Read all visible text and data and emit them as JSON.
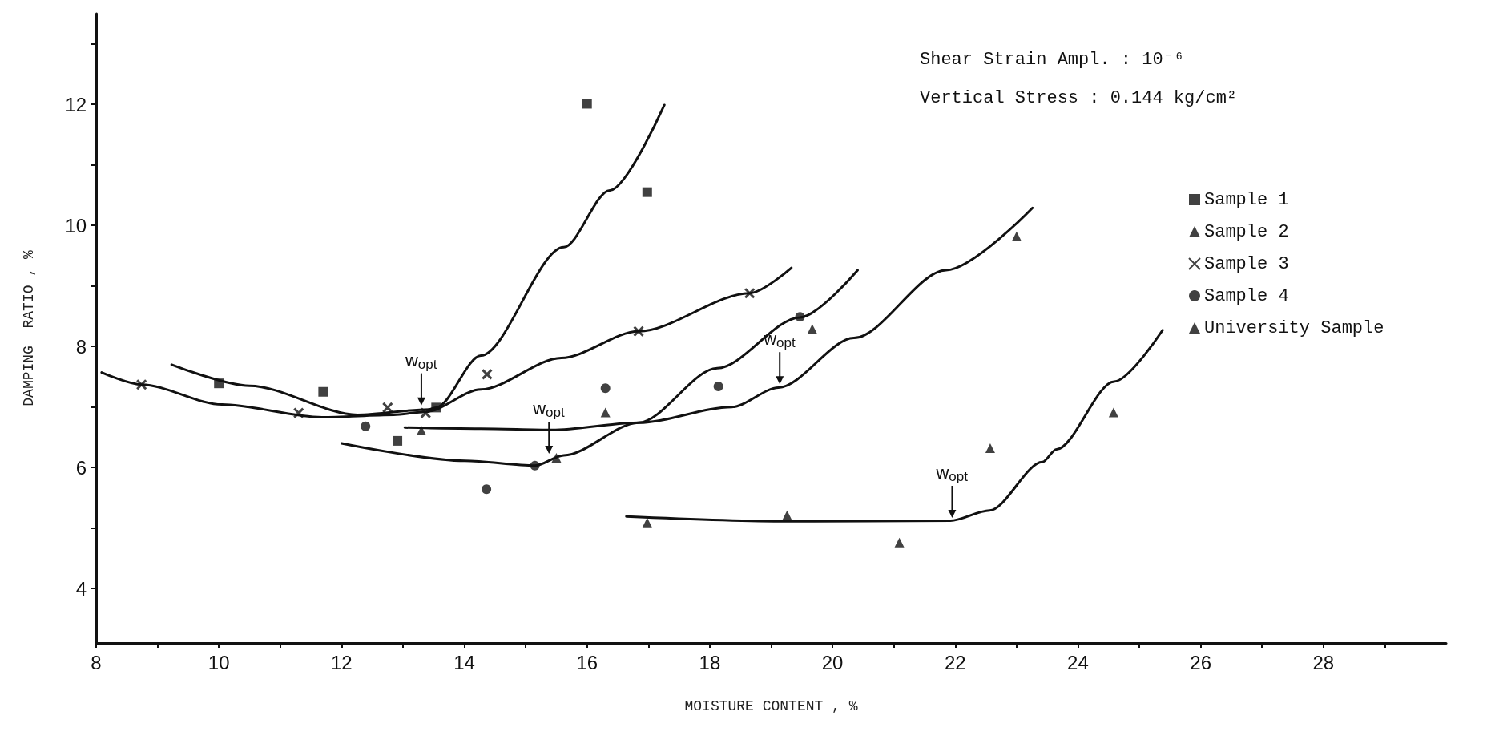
{
  "chart_data": {
    "type": "scatter",
    "xlabel": "MOISTURE CONTENT , %",
    "ylabel": "DAMPING  RATIO , %",
    "xlim": [
      8,
      30
    ],
    "ylim": [
      3.1,
      13.5
    ],
    "xticks": [
      8,
      {
        "value": 9,
        "label": null
      },
      10,
      {
        "value": 11,
        "label": null
      },
      12,
      {
        "value": 13,
        "label": null
      },
      14,
      {
        "value": 15,
        "label": null
      },
      16,
      {
        "value": 17,
        "label": null
      },
      18,
      {
        "value": 19,
        "label": null
      },
      20,
      {
        "value": 21,
        "label": null
      },
      22,
      {
        "value": 23,
        "label": null
      },
      24,
      {
        "value": 25,
        "label": null
      },
      26,
      {
        "value": 27,
        "label": null
      },
      28,
      {
        "value": 29,
        "label": null
      }
    ],
    "yticks": [
      4,
      {
        "value": 5,
        "label": null
      },
      6,
      {
        "value": 7,
        "label": null
      },
      8,
      {
        "value": 9,
        "label": null
      },
      10,
      {
        "value": 11,
        "label": null
      },
      12,
      {
        "value": 13,
        "label": null
      }
    ],
    "grid": false,
    "legend": "top right",
    "series": [
      {
        "name": "Sample 1",
        "color": "#111111",
        "marker": "square",
        "x": [
          10.0,
          11.7,
          12.91,
          13.54,
          16.0,
          16.98
        ],
        "values": [
          7.39,
          7.25,
          6.44,
          6.99,
          12.01,
          10.55
        ]
      },
      {
        "name": "Sample 2",
        "color": "#111111",
        "marker": "triangle",
        "x": [
          16.98,
          19.26,
          21.09,
          22.57,
          24.58
        ],
        "values": [
          5.09,
          5.21,
          4.76,
          6.32,
          6.91
        ]
      },
      {
        "name": "Sample 3",
        "color": "#111111",
        "marker": "cross",
        "x": [
          8.74,
          11.3,
          12.75,
          13.37,
          14.37,
          16.84,
          18.65
        ],
        "values": [
          7.37,
          6.9,
          6.99,
          6.9,
          7.54,
          8.25,
          8.88
        ]
      },
      {
        "name": "Sample 4",
        "color": "#111111",
        "marker": "circle",
        "x": [
          12.39,
          14.36,
          15.15,
          16.3,
          18.14,
          19.47
        ],
        "values": [
          6.68,
          5.64,
          6.03,
          7.31,
          7.34,
          8.49
        ]
      },
      {
        "name": "University Sample",
        "color": "#111111",
        "marker": "triangle",
        "x": [
          13.3,
          15.5,
          16.3,
          19.67,
          23.0
        ],
        "values": [
          6.61,
          6.16,
          6.91,
          8.29,
          9.82
        ]
      },
      {
        "type": "line",
        "color": "#111111",
        "marker": "none",
        "x": [
          9.23,
          10.5,
          12.26,
          13.43,
          13.54,
          14.27,
          15.62,
          16.37,
          17.26
        ],
        "values": [
          7.7,
          7.35,
          6.87,
          6.96,
          6.99,
          7.85,
          9.64,
          10.58,
          11.99
        ]
      },
      {
        "type": "line",
        "color": "#111111",
        "marker": "none",
        "x": [
          8.09,
          8.74,
          10.05,
          11.68,
          12.85,
          13.37,
          14.27,
          15.58,
          16.84,
          18.65,
          19.33
        ],
        "values": [
          7.57,
          7.37,
          7.04,
          6.83,
          6.87,
          6.92,
          7.29,
          7.81,
          8.25,
          8.88,
          9.3
        ]
      },
      {
        "type": "line",
        "color": "#111111",
        "marker": "none",
        "x": [
          12.0,
          14.01,
          15.15,
          15.62,
          16.84,
          18.12,
          19.47,
          20.41
        ],
        "values": [
          6.4,
          6.11,
          6.03,
          6.2,
          6.74,
          7.64,
          8.48,
          9.26
        ]
      },
      {
        "type": "line",
        "color": "#111111",
        "marker": "none",
        "x": [
          13.03,
          14.27,
          15.43,
          16.84,
          18.36,
          19.12,
          20.35,
          21.85,
          23.26
        ],
        "values": [
          6.66,
          6.64,
          6.62,
          6.74,
          7.0,
          7.32,
          8.14,
          9.26,
          10.29
        ]
      },
      {
        "type": "line",
        "color": "#111111",
        "marker": "none",
        "x": [
          16.64,
          19.26,
          21.92,
          22.56,
          23.42,
          23.65,
          24.59,
          25.38
        ],
        "values": [
          5.19,
          5.11,
          5.12,
          5.29,
          6.09,
          6.3,
          7.42,
          8.27
        ]
      }
    ],
    "annotations": [
      "Shear Strain Ampl. : 10⁻⁶",
      "Vertical Stress : 0.144 kg/cm²",
      {
        "text": "w$_{opt}$",
        "x": 13.3,
        "y": 7.0
      },
      {
        "text": "w$_{opt}$",
        "x": 15.38,
        "y": 6.2
      },
      {
        "text": "w$_{opt}$",
        "x": 19.14,
        "y": 7.35
      },
      {
        "text": "w$_{opt}$",
        "x": 21.95,
        "y": 5.14
      }
    ]
  }
}
